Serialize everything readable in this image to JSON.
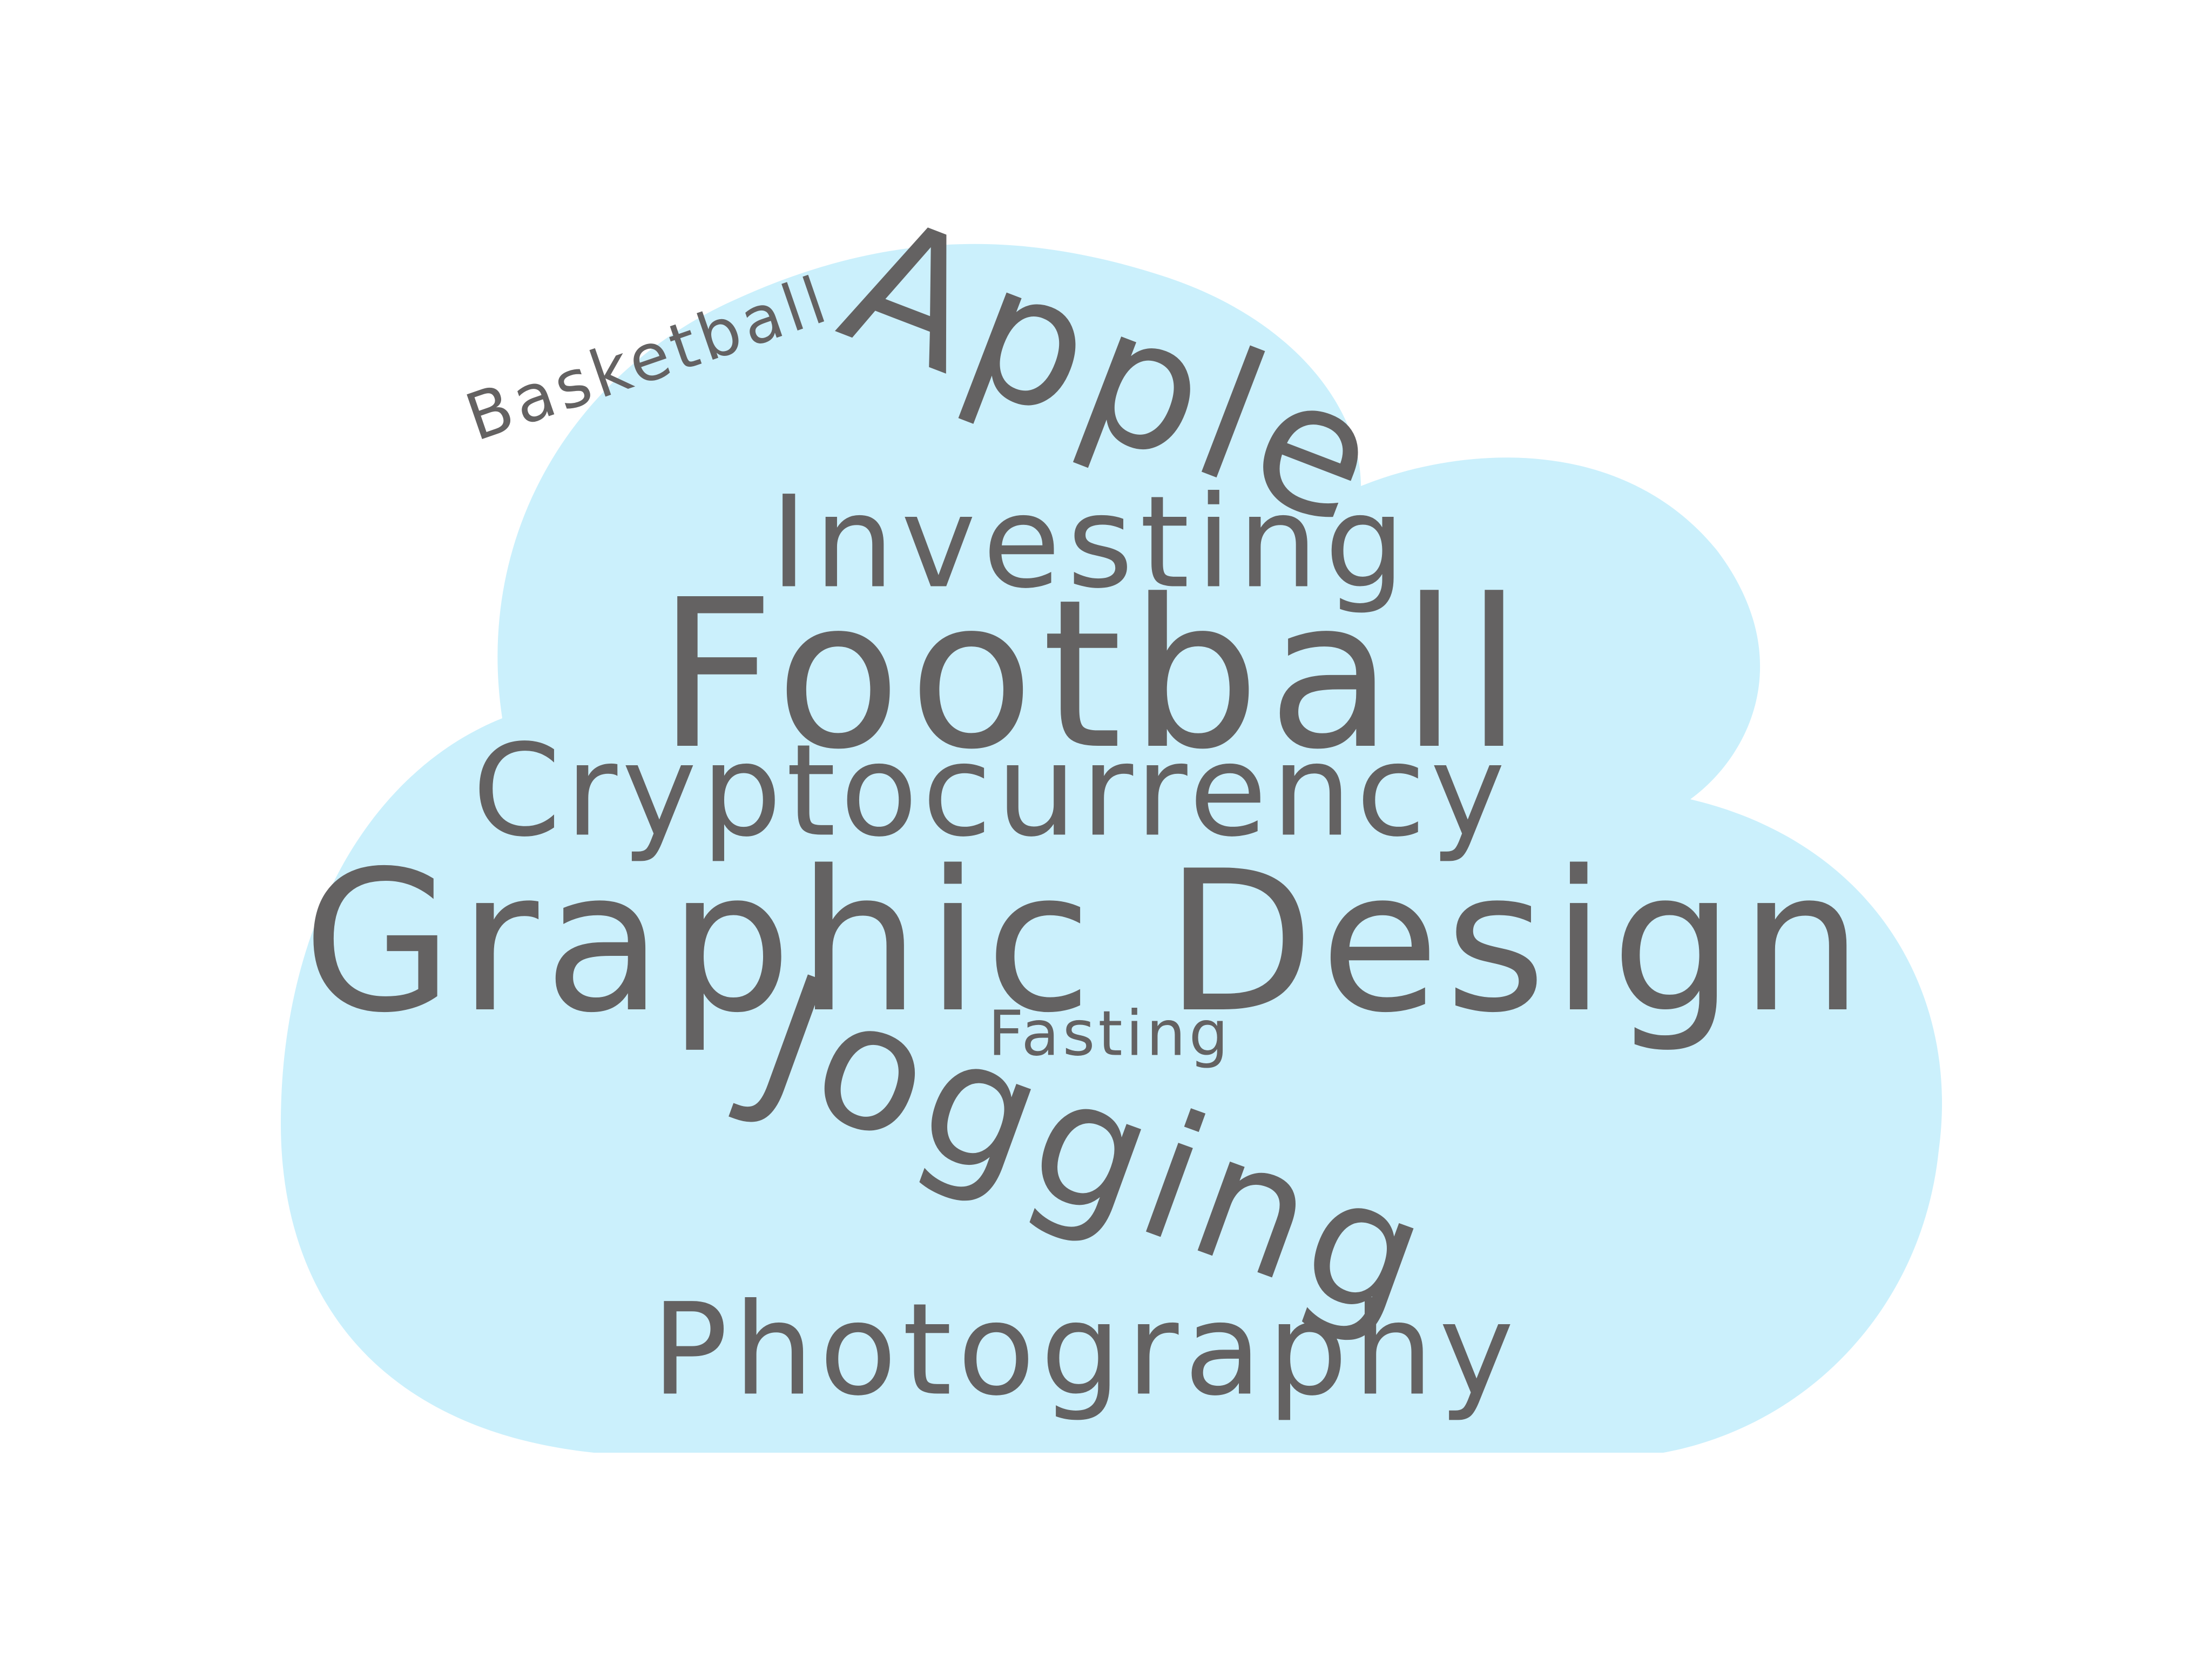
{
  "cloud": {
    "fill_color": "#cbf0fc"
  },
  "text_color": "#646262",
  "words": {
    "apple": "Apple",
    "basketball": "Basketball",
    "investing": "Investing",
    "football": "Football",
    "cryptocurrency": "Cryptocurrency",
    "graphic_design": "Graphic Design",
    "fasting": "Fasting",
    "jogging": "Jogging",
    "photography": "Photography"
  }
}
